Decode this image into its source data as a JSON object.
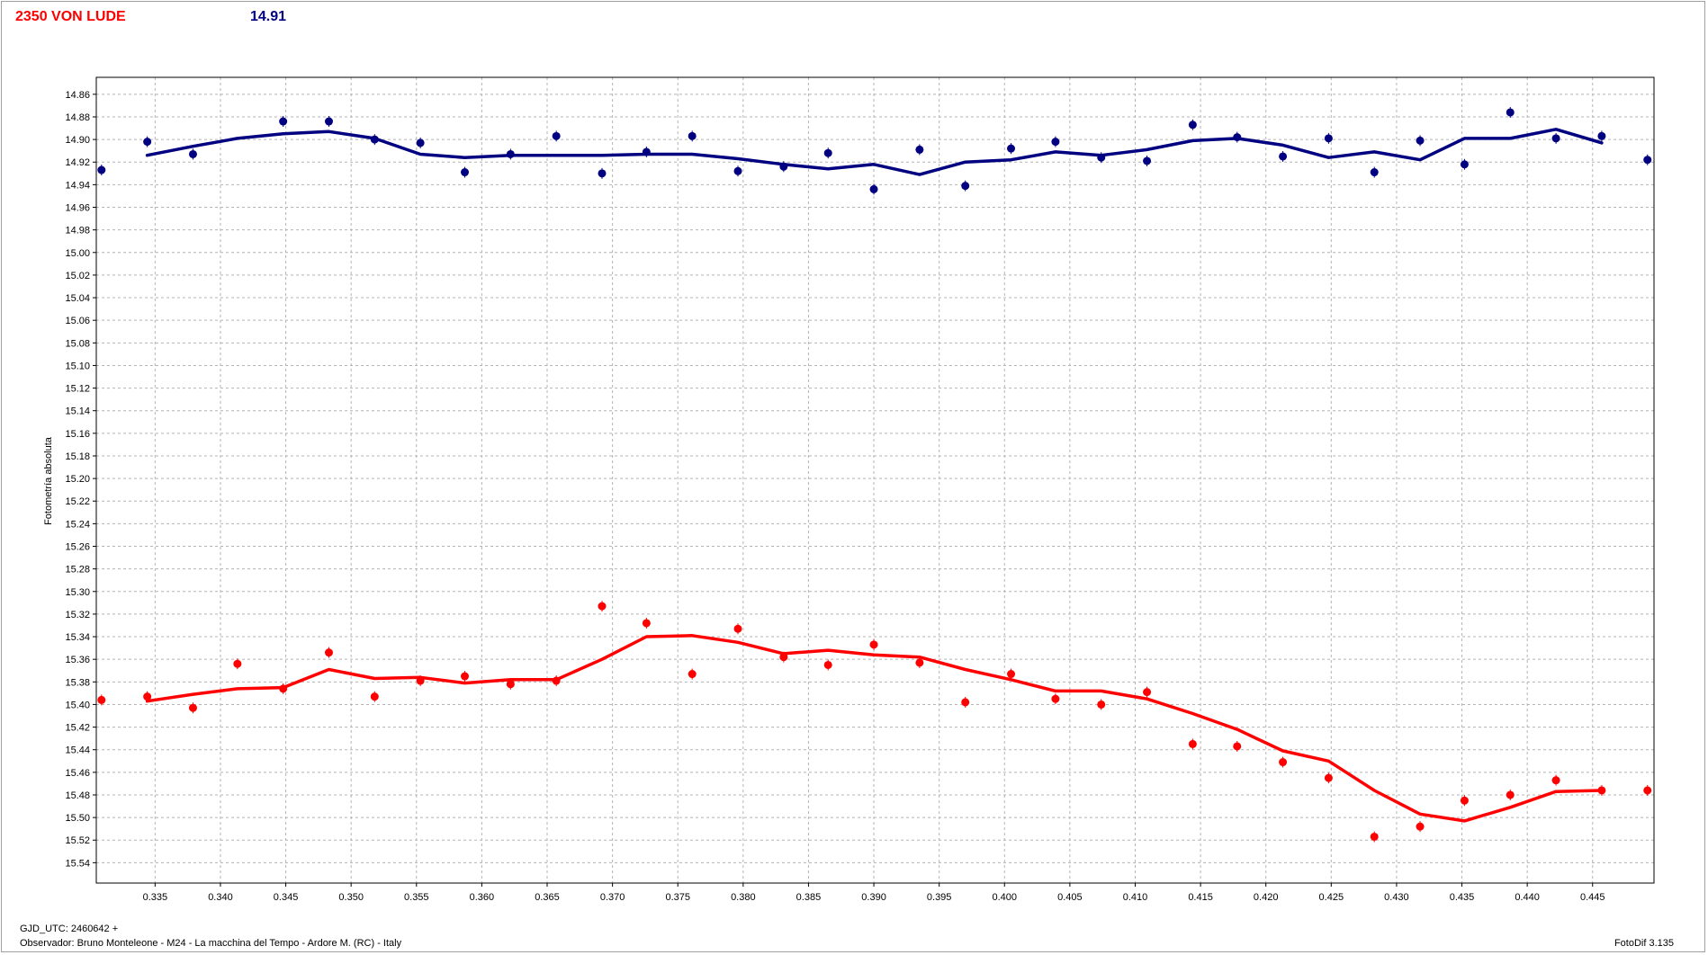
{
  "header": {
    "object_name": "2350 VON LUDE",
    "mean_mag": "14.91"
  },
  "footer": {
    "gjd": "GJD_UTC: 2460642 +",
    "observer": "Observador: Bruno Monteleone - M24 - La macchina del Tempo - Ardore M. (RC) - Italy",
    "software": "FotoDif 3.135"
  },
  "colors": {
    "blue": "#000080",
    "red": "#ff0000",
    "grid": "#b4b4b4"
  },
  "chart_data": {
    "type": "scatter",
    "ylabel": "Fotometría absoluta",
    "xlabel": "",
    "xlim": [
      0.3305,
      0.4497
    ],
    "ylim": [
      14.845,
      15.558
    ],
    "y_inverted": true,
    "grid": true,
    "x_ticks": [
      0.335,
      0.34,
      0.345,
      0.35,
      0.355,
      0.36,
      0.365,
      0.37,
      0.375,
      0.38,
      0.385,
      0.39,
      0.395,
      0.4,
      0.405,
      0.41,
      0.415,
      0.42,
      0.425,
      0.43,
      0.435,
      0.44,
      0.445
    ],
    "x_tick_labels": [
      "0.335",
      "0.340",
      "0.345",
      "0.350",
      "0.355",
      "0.360",
      "0.365",
      "0.370",
      "0.375",
      "0.380",
      "0.385",
      "0.390",
      "0.395",
      "0.400",
      "0.405",
      "0.410",
      "0.415",
      "0.420",
      "0.425",
      "0.430",
      "0.435",
      "0.440",
      "0.445"
    ],
    "y_ticks": [
      14.86,
      14.88,
      14.9,
      14.92,
      14.94,
      14.96,
      14.98,
      15.0,
      15.02,
      15.04,
      15.06,
      15.08,
      15.1,
      15.12,
      15.14,
      15.16,
      15.18,
      15.2,
      15.22,
      15.24,
      15.26,
      15.28,
      15.3,
      15.32,
      15.34,
      15.36,
      15.38,
      15.4,
      15.42,
      15.44,
      15.46,
      15.48,
      15.5,
      15.52,
      15.54
    ],
    "y_tick_labels": [
      "14.86",
      "14.88",
      "14.90",
      "14.92",
      "14.94",
      "14.96",
      "14.98",
      "15.00",
      "15.02",
      "15.04",
      "15.06",
      "15.08",
      "15.10",
      "15.12",
      "15.14",
      "15.16",
      "15.18",
      "15.20",
      "15.22",
      "15.24",
      "15.26",
      "15.28",
      "15.30",
      "15.32",
      "15.34",
      "15.36",
      "15.38",
      "15.40",
      "15.42",
      "15.44",
      "15.46",
      "15.48",
      "15.50",
      "15.52",
      "15.54"
    ],
    "series": [
      {
        "color": "#000080",
        "x": [
          0.3309,
          0.3344,
          0.3379,
          0.3448,
          0.3483,
          0.3518,
          0.3553,
          0.3587,
          0.3622,
          0.3657,
          0.3692,
          0.3726,
          0.3761,
          0.3796,
          0.3831,
          0.3865,
          0.39,
          0.3935,
          0.397,
          0.4005,
          0.4039,
          0.4074,
          0.4109,
          0.4144,
          0.4178,
          0.4213,
          0.4248,
          0.4283,
          0.4318,
          0.4352,
          0.4387,
          0.4422,
          0.4457,
          0.4492
        ],
        "y": [
          14.927,
          14.902,
          14.913,
          14.884,
          14.884,
          14.9,
          14.903,
          14.929,
          14.913,
          14.897,
          14.93,
          14.911,
          14.897,
          14.928,
          14.924,
          14.912,
          14.944,
          14.909,
          14.941,
          14.908,
          14.902,
          14.916,
          14.919,
          14.887,
          14.898,
          14.915,
          14.899,
          14.929,
          14.901,
          14.922,
          14.876,
          14.899,
          14.897,
          14.918
        ],
        "line_x": [
          0.3344,
          0.3379,
          0.3413,
          0.3448,
          0.3483,
          0.3518,
          0.3553,
          0.3587,
          0.3622,
          0.3657,
          0.3692,
          0.3726,
          0.3761,
          0.3796,
          0.3831,
          0.3865,
          0.39,
          0.3935,
          0.397,
          0.4005,
          0.4039,
          0.4074,
          0.4109,
          0.4144,
          0.4178,
          0.4213,
          0.4248,
          0.4283,
          0.4318,
          0.4352,
          0.4387,
          0.4422,
          0.4457
        ],
        "line_y": [
          14.914,
          14.906,
          14.899,
          14.895,
          14.893,
          14.899,
          14.913,
          14.916,
          14.914,
          14.914,
          14.914,
          14.913,
          14.913,
          14.917,
          14.922,
          14.926,
          14.922,
          14.931,
          14.92,
          14.918,
          14.911,
          14.914,
          14.909,
          14.901,
          14.899,
          14.905,
          14.916,
          14.911,
          14.918,
          14.899,
          14.899,
          14.891,
          14.903
        ]
      },
      {
        "color": "#ff0000",
        "x": [
          0.3309,
          0.3344,
          0.3379,
          0.3413,
          0.3448,
          0.3483,
          0.3518,
          0.3553,
          0.3587,
          0.3622,
          0.3657,
          0.3692,
          0.3726,
          0.3761,
          0.3796,
          0.3831,
          0.3865,
          0.39,
          0.3935,
          0.397,
          0.4005,
          0.4039,
          0.4074,
          0.4109,
          0.4144,
          0.4178,
          0.4213,
          0.4248,
          0.4283,
          0.4318,
          0.4352,
          0.4387,
          0.4422,
          0.4457,
          0.4492
        ],
        "y": [
          15.396,
          15.393,
          15.403,
          15.364,
          15.386,
          15.354,
          15.393,
          15.379,
          15.375,
          15.382,
          15.379,
          15.313,
          15.328,
          15.373,
          15.333,
          15.358,
          15.365,
          15.347,
          15.363,
          15.398,
          15.373,
          15.395,
          15.4,
          15.389,
          15.435,
          15.437,
          15.451,
          15.465,
          15.517,
          15.508,
          15.485,
          15.48,
          15.467,
          15.476,
          15.476
        ],
        "line_x": [
          0.3344,
          0.3379,
          0.3413,
          0.3448,
          0.3483,
          0.3518,
          0.3553,
          0.3587,
          0.3622,
          0.3657,
          0.3692,
          0.3726,
          0.3761,
          0.3796,
          0.3831,
          0.3865,
          0.39,
          0.3935,
          0.397,
          0.4005,
          0.4039,
          0.4074,
          0.4109,
          0.4144,
          0.4178,
          0.4213,
          0.4248,
          0.4283,
          0.4318,
          0.4352,
          0.4387,
          0.4422,
          0.4457
        ],
        "line_y": [
          15.397,
          15.391,
          15.386,
          15.385,
          15.369,
          15.377,
          15.376,
          15.381,
          15.378,
          15.378,
          15.36,
          15.34,
          15.339,
          15.345,
          15.355,
          15.352,
          15.356,
          15.358,
          15.369,
          15.378,
          15.388,
          15.388,
          15.395,
          15.408,
          15.422,
          15.441,
          15.45,
          15.476,
          15.497,
          15.503,
          15.491,
          15.477,
          15.476
        ]
      }
    ]
  }
}
